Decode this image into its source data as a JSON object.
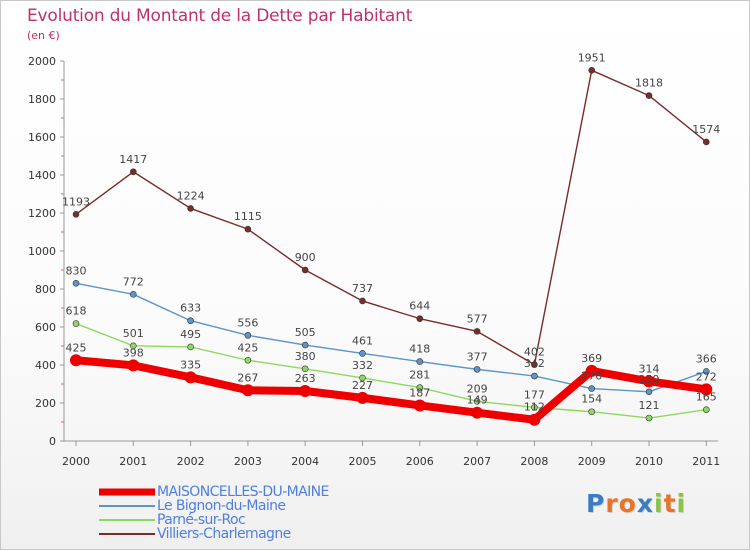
{
  "title": "Evolution du Montant de la Dette par Habitant",
  "subtitle": "(en €)",
  "logo": {
    "letters": [
      "P",
      "r",
      "o",
      "x",
      "i",
      "t",
      "i"
    ],
    "colors": [
      "#3a7dc4",
      "#e8732a",
      "#e8732a",
      "#3a7dc4",
      "#8bc34a",
      "#e8732a",
      "#8bc34a"
    ]
  },
  "chart_data": {
    "type": "line",
    "x": [
      "2000",
      "2001",
      "2002",
      "2003",
      "2004",
      "2005",
      "2006",
      "2007",
      "2008",
      "2009",
      "2010",
      "2011"
    ],
    "ylim": [
      0,
      2000
    ],
    "yticks": [
      0,
      200,
      400,
      600,
      800,
      1000,
      1200,
      1400,
      1600,
      1800,
      2000
    ],
    "grid": false,
    "legend_position": "bottom-left",
    "series": [
      {
        "name": "MAISONCELLES-DU-MAINE",
        "color": "#ee0000",
        "values": [
          425,
          398,
          335,
          267,
          263,
          227,
          187,
          149,
          112,
          369,
          314,
          272
        ],
        "labels": [
          "425",
          "398",
          "335",
          "267",
          "263",
          "227",
          "187",
          "149",
          "112",
          "369",
          "314",
          "272"
        ]
      },
      {
        "name": "Le Bignon-du-Maine",
        "color": "#5b95c9",
        "values": [
          830,
          772,
          633,
          556,
          505,
          461,
          418,
          377,
          342,
          276,
          259,
          366
        ],
        "labels": [
          "830",
          "772",
          "633",
          "556",
          "505",
          "461",
          "418",
          "377",
          "342",
          "276",
          "259",
          "366"
        ]
      },
      {
        "name": "Parné-sur-Roc",
        "color": "#8fd860",
        "values": [
          618,
          501,
          495,
          425,
          380,
          332,
          281,
          209,
          177,
          154,
          121,
          165
        ],
        "labels": [
          "618",
          "501",
          "495",
          "425",
          "380",
          "332",
          "281",
          "209",
          "177",
          "154",
          "121",
          "165"
        ]
      },
      {
        "name": "Villiers-Charlemagne",
        "color": "#7a2b2b",
        "values": [
          1193,
          1417,
          1224,
          1115,
          900,
          737,
          644,
          577,
          402,
          1951,
          1818,
          1574
        ],
        "labels": [
          "1193",
          "1417",
          "1224",
          "1115",
          "900",
          "737",
          "644",
          "577",
          "402",
          "1951",
          "1818",
          "1574"
        ]
      }
    ]
  }
}
